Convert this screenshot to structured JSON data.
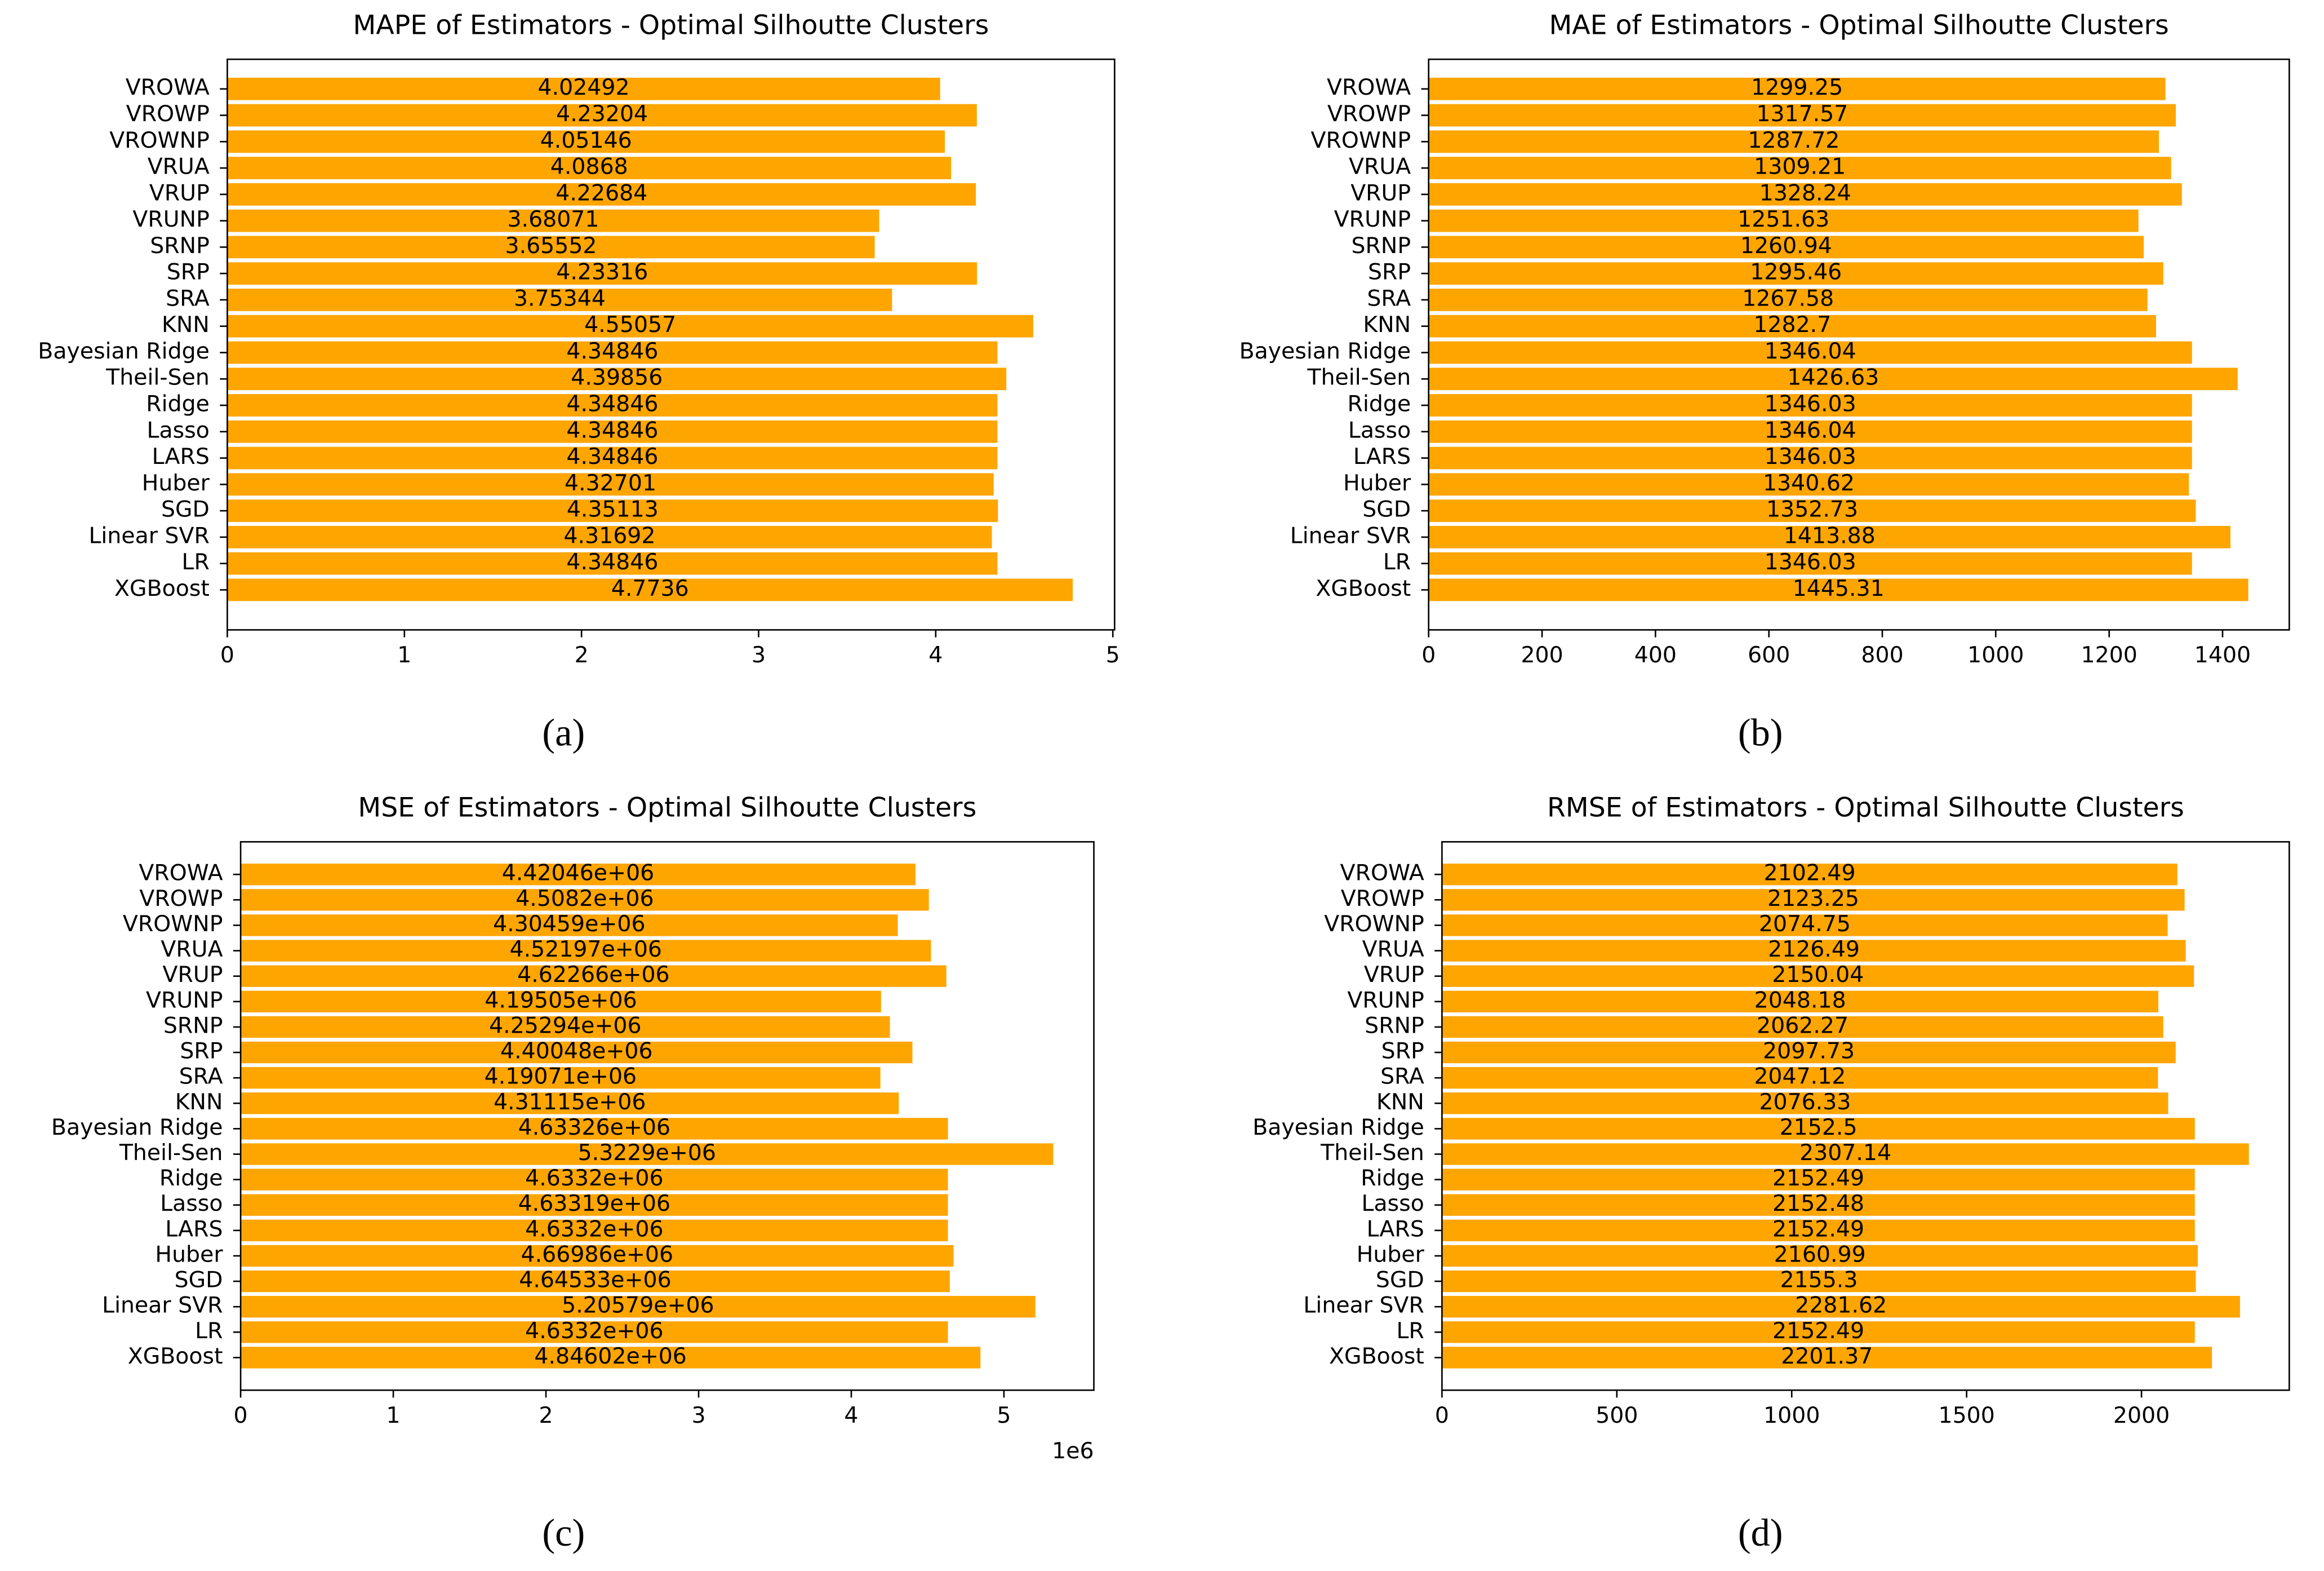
{
  "chart_data": [
    {
      "type": "bar",
      "orientation": "horizontal",
      "title": "MAPE of Estimators  - Optimal Silhoutte Clusters",
      "panel_label": "(a)",
      "color": "#ffa500",
      "categories": [
        "VROWA",
        "VROWP",
        "VROWNP",
        "VRUA",
        "VRUP",
        "VRUNP",
        "SRNP",
        "SRP",
        "SRA",
        "KNN",
        "Bayesian Ridge",
        "Theil-Sen",
        "Ridge",
        "Lasso",
        "LARS",
        "Huber",
        "SGD",
        "Linear SVR",
        "LR",
        "XGBoost"
      ],
      "values": [
        4.02492,
        4.23204,
        4.05146,
        4.0868,
        4.22684,
        3.68071,
        3.65552,
        4.23316,
        3.75344,
        4.55057,
        4.34846,
        4.39856,
        4.34846,
        4.34846,
        4.34846,
        4.32701,
        4.35113,
        4.31692,
        4.34846,
        4.7736
      ],
      "xlim": [
        0,
        5.01
      ],
      "xticks": [
        0,
        1,
        2,
        3,
        4,
        5
      ]
    },
    {
      "type": "bar",
      "orientation": "horizontal",
      "title": "MAE of Estimators  - Optimal Silhoutte Clusters",
      "panel_label": "(b)",
      "color": "#ffa500",
      "categories": [
        "VROWA",
        "VROWP",
        "VROWNP",
        "VRUA",
        "VRUP",
        "VRUNP",
        "SRNP",
        "SRP",
        "SRA",
        "KNN",
        "Bayesian Ridge",
        "Theil-Sen",
        "Ridge",
        "Lasso",
        "LARS",
        "Huber",
        "SGD",
        "Linear SVR",
        "LR",
        "XGBoost"
      ],
      "values": [
        1299.25,
        1317.57,
        1287.72,
        1309.21,
        1328.24,
        1251.63,
        1260.94,
        1295.46,
        1267.58,
        1282.7,
        1346.04,
        1426.63,
        1346.03,
        1346.04,
        1346.03,
        1340.62,
        1352.73,
        1413.88,
        1346.03,
        1445.31
      ],
      "xlim": [
        0,
        1517.6
      ],
      "xticks": [
        0,
        200,
        400,
        600,
        800,
        1000,
        1200,
        1400
      ]
    },
    {
      "type": "bar",
      "orientation": "horizontal",
      "title": "MSE of Estimators  - Optimal Silhoutte Clusters",
      "panel_label": "(c)",
      "color": "#ffa500",
      "axis_offset_label": "1e6",
      "categories": [
        "VROWA",
        "VROWP",
        "VROWNP",
        "VRUA",
        "VRUP",
        "VRUNP",
        "SRNP",
        "SRP",
        "SRA",
        "KNN",
        "Bayesian Ridge",
        "Theil-Sen",
        "Ridge",
        "Lasso",
        "LARS",
        "Huber",
        "SGD",
        "Linear SVR",
        "LR",
        "XGBoost"
      ],
      "values": [
        4.42046,
        4.5082,
        4.30459,
        4.52197,
        4.62266,
        4.19505,
        4.25294,
        4.40048,
        4.19071,
        4.31115,
        4.63326,
        5.3229,
        4.6332,
        4.63319,
        4.6332,
        4.66986,
        4.64533,
        5.20579,
        4.6332,
        4.84602
      ],
      "value_labels": [
        "4.42046e+06",
        "4.5082e+06",
        "4.30459e+06",
        "4.52197e+06",
        "4.62266e+06",
        "4.19505e+06",
        "4.25294e+06",
        "4.40048e+06",
        "4.19071e+06",
        "4.31115e+06",
        "4.63326e+06",
        "5.3229e+06",
        "4.6332e+06",
        "4.63319e+06",
        "4.6332e+06",
        "4.66986e+06",
        "4.64533e+06",
        "5.20579e+06",
        "4.6332e+06",
        "4.84602e+06"
      ],
      "xlim": [
        0,
        5.589
      ],
      "xticks": [
        0,
        1,
        2,
        3,
        4,
        5
      ]
    },
    {
      "type": "bar",
      "orientation": "horizontal",
      "title": "RMSE of Estimators  - Optimal Silhoutte Clusters",
      "panel_label": "(d)",
      "color": "#ffa500",
      "categories": [
        "VROWA",
        "VROWP",
        "VROWNP",
        "VRUA",
        "VRUP",
        "VRUNP",
        "SRNP",
        "SRP",
        "SRA",
        "KNN",
        "Bayesian Ridge",
        "Theil-Sen",
        "Ridge",
        "Lasso",
        "LARS",
        "Huber",
        "SGD",
        "Linear SVR",
        "LR",
        "XGBoost"
      ],
      "values": [
        2102.49,
        2123.25,
        2074.75,
        2126.49,
        2150.04,
        2048.18,
        2062.27,
        2097.73,
        2047.12,
        2076.33,
        2152.5,
        2307.14,
        2152.49,
        2152.48,
        2152.49,
        2160.99,
        2155.3,
        2281.62,
        2152.49,
        2201.37
      ],
      "xlim": [
        0,
        2422.5
      ],
      "xticks": [
        0,
        500,
        1000,
        1500,
        2000
      ]
    }
  ]
}
